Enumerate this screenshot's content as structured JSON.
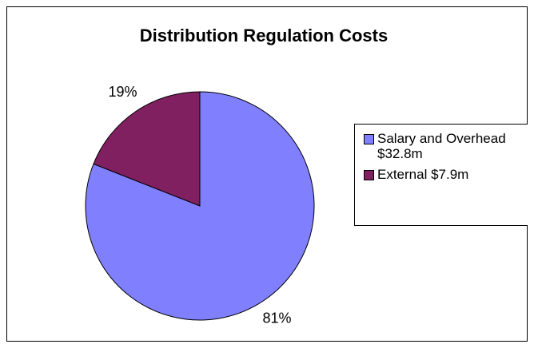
{
  "chart_data": {
    "type": "pie",
    "title": "Distribution Regulation Costs",
    "categories": [
      "Salary and Overhead $32.8m",
      "External $7.9m"
    ],
    "values": [
      81,
      19
    ],
    "value_labels": [
      "81%",
      "19%"
    ],
    "colors": [
      "#8080ff",
      "#802060"
    ],
    "legend": "right"
  }
}
